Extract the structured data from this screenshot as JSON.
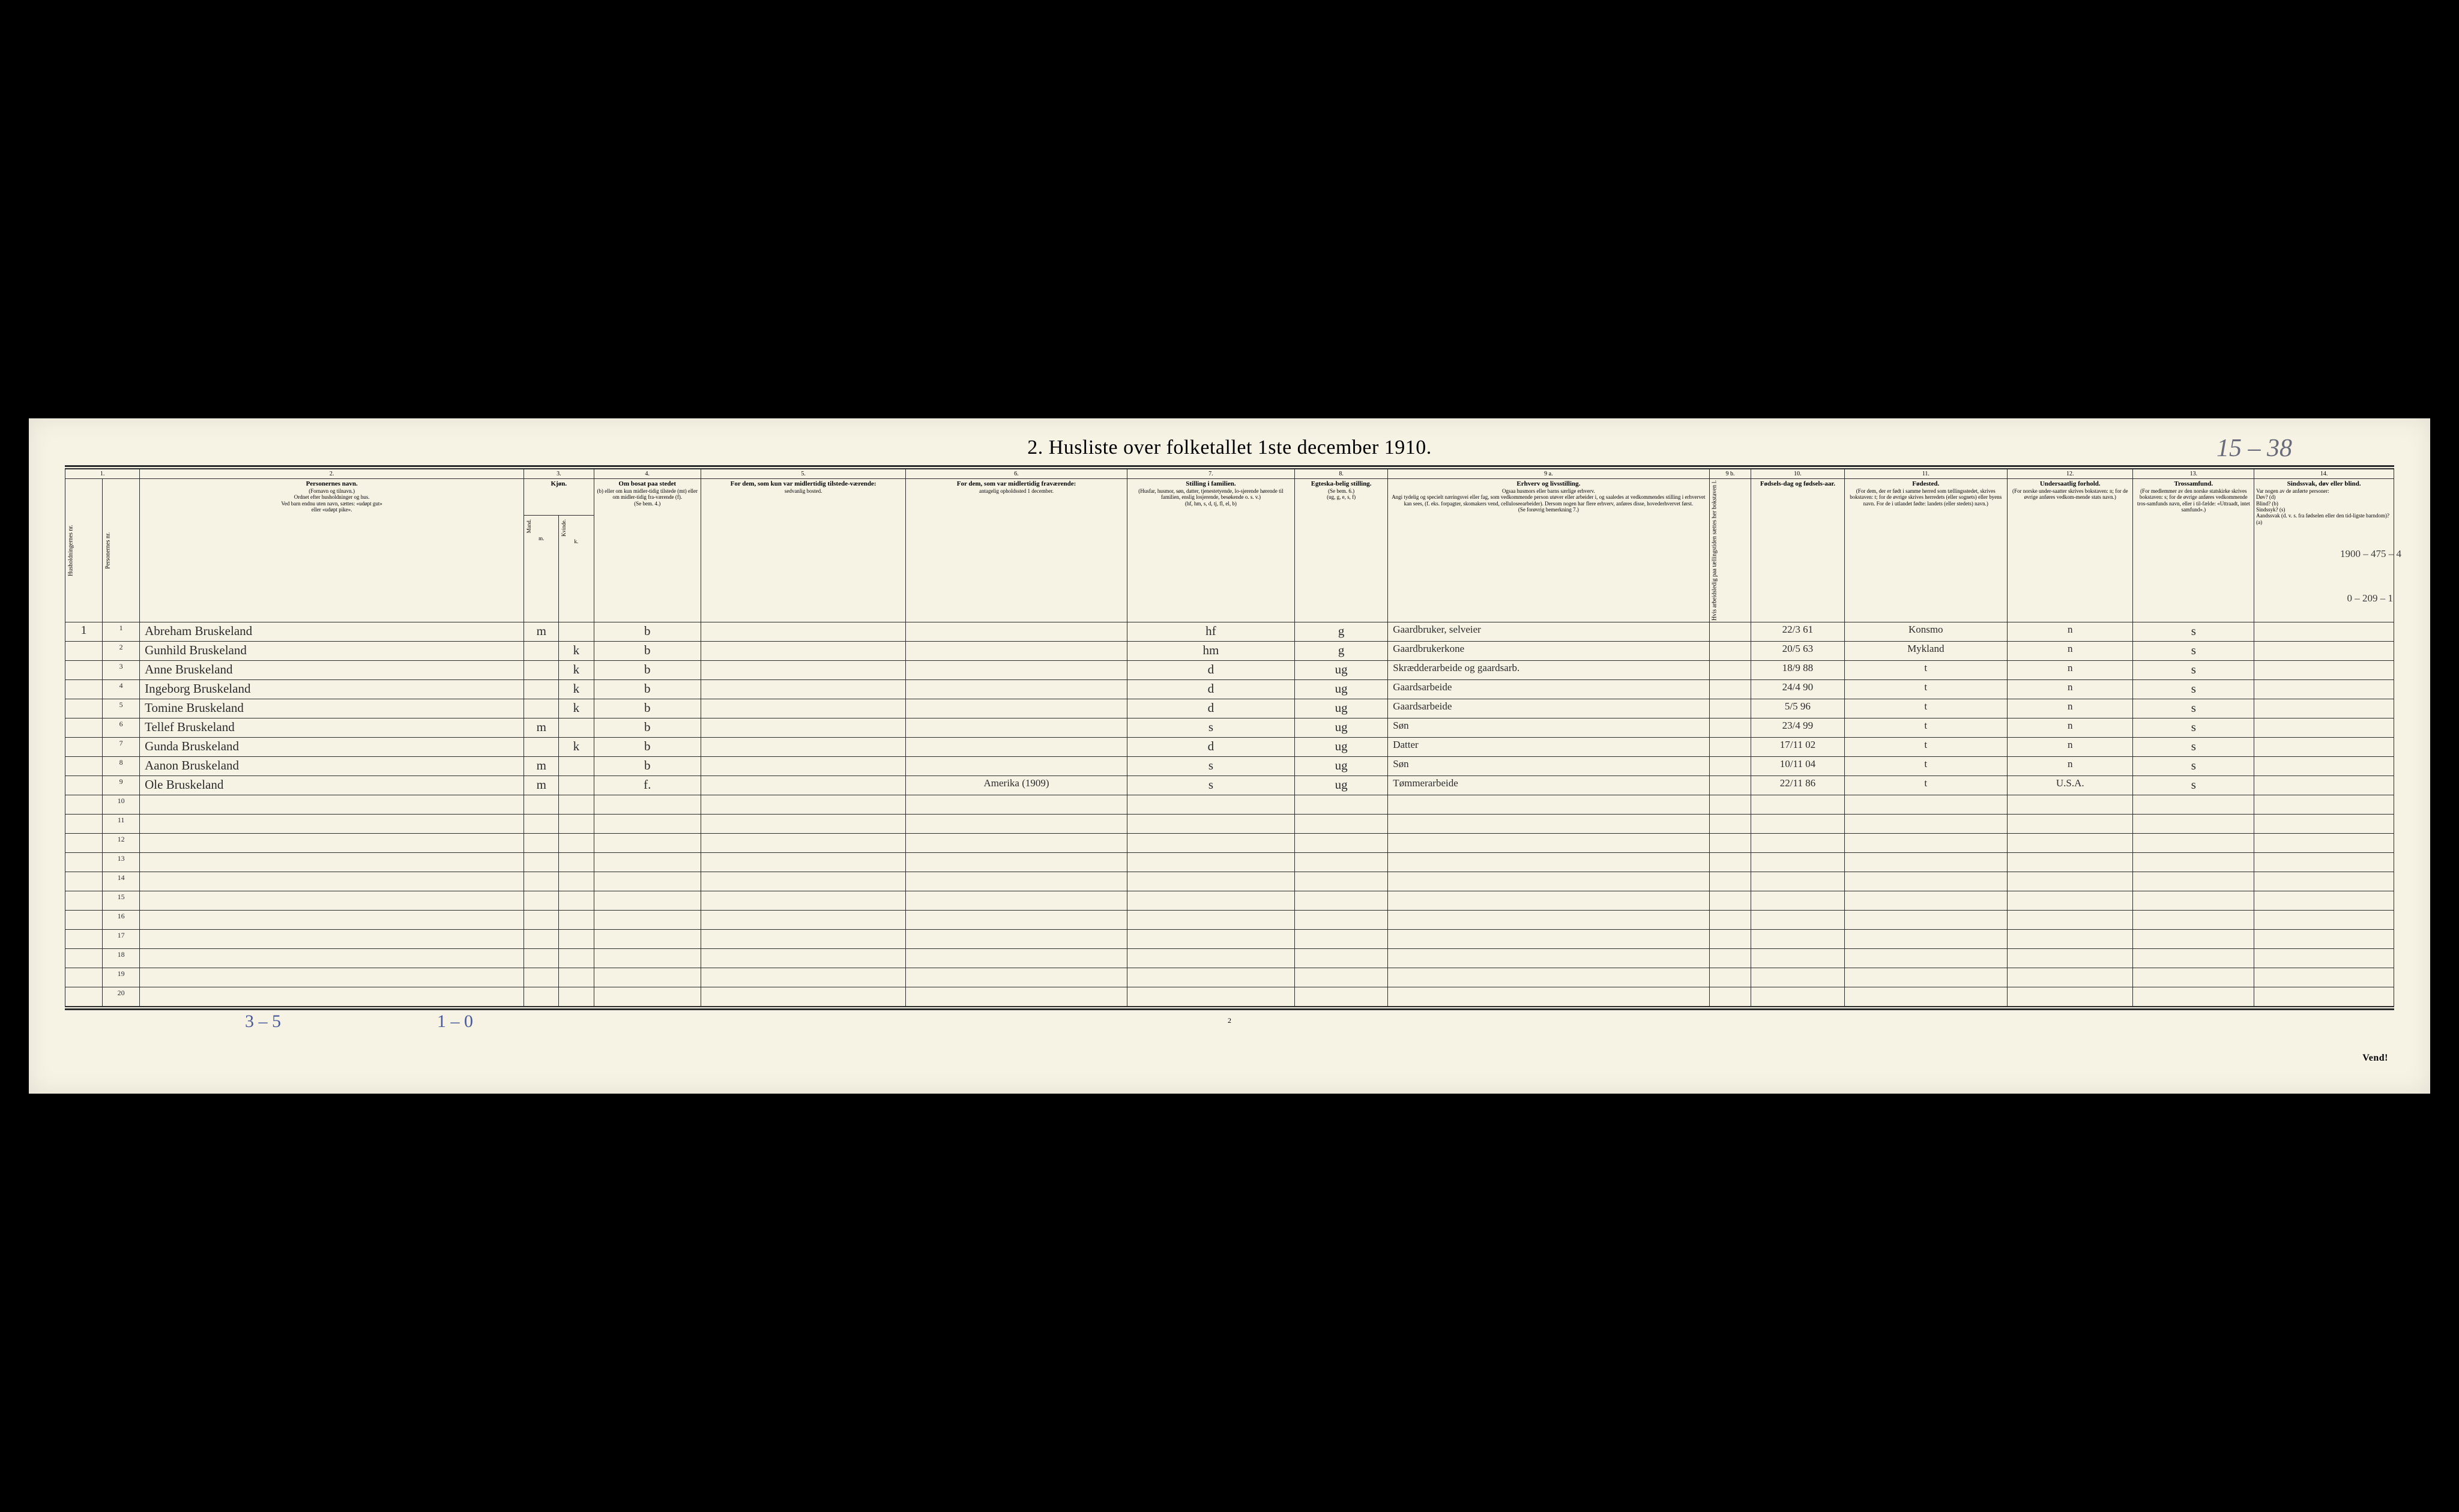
{
  "title": "2.  Husliste over folketallet 1ste december 1910.",
  "pencil_top": "15 – 38",
  "page_number_bottom": "2",
  "pencil_bottom_left": "3 – 5",
  "pencil_bottom_right": "1 – 0",
  "vend": "Vend!",
  "marginalia_top_right": "1900 – 475 – 4",
  "marginalia_row3": "0 – 209 – 1",
  "col_numbers": [
    "1.",
    "2.",
    "3.",
    "4.",
    "5.",
    "6.",
    "7.",
    "8.",
    "9 a.",
    "9 b.",
    "10.",
    "11.",
    "12.",
    "13.",
    "14."
  ],
  "headers": {
    "c1a": "Husholdningernes nr.",
    "c1b": "Personernes nr.",
    "c2_main": "Personernes navn.",
    "c2_sub": "(Fornavn og tilnavn.)\nOrdnet efter husholdninger og hus.\nVed barn endnu uten navn, sættes: «udøpt gut»\neller «udøpt pike».",
    "c3": "Kjøn.",
    "c3m": "Mand.",
    "c3k": "Kvinde.",
    "c3mk": "m.  k.",
    "c4_main": "Om bosat paa stedet",
    "c4_sub": "(b) eller om kun midler-tidig tilstede (mt) eller om midler-tidig fra-værende (f).\n(Se bem. 4.)",
    "c5_main": "For dem, som kun var midlertidig tilstede-værende:",
    "c5_sub": "sedvanlig bosted.",
    "c6_main": "For dem, som var midlertidig fraværende:",
    "c6_sub": "antagelig opholdssted 1 december.",
    "c7_main": "Stilling i familien.",
    "c7_sub": "(Husfar, husmor, søn, datter, tjenestetyende, lo-sjerende hørende til familien, enslig losjerende, besøkende o. s. v.)\n(hf, hm, s, d, tj, fl, el, b)",
    "c8_main": "Egteska-belig stilling.",
    "c8_sub": "(Se bem. 6.)\n(ug, g, e, s, f)",
    "c9a_main": "Erhverv og livsstilling.",
    "c9a_sub": "Ogsaa husmors eller barns særlige erhverv.\nAngi tydelig og specielt næringsvei eller fag, som vedkommende person utøver eller arbeider i, og saaledes at vedkommendes stilling i erhvervet kan sees, (f. eks. forpagter, skomakers vend, celluloseearbeider). Dersom nogen har flere erhverv, anføres disse, hovederhvervet først.\n(Se forøvrig bemerkning 7.)",
    "c9b": "Hvis arbeidsledig paa tællingstiden sættes her bokstaven l.",
    "c10_main": "Fødsels-dag og fødsels-aar.",
    "c11_main": "Fødested.",
    "c11_sub": "(For dem, der er født i samme herred som tællingsstedet, skrives bokstaven: t; for de øvrige skrives herredets (eller sognets) eller byens navn. For de i utlandet fødte: landets (eller stedets) navn.)",
    "c12_main": "Undersaatlig forhold.",
    "c12_sub": "(For norske under-saatter skrives bokstaven: n; for de øvrige anføres vedkom-mende stats navn.)",
    "c13_main": "Trossamfund.",
    "c13_sub": "(For medlemmer av den norske statskirke skrives bokstaven: s; for de øvrige anføres vedkommende tros-samfunds navn, eller i til-fælde: «Uttraadt, intet samfund».)",
    "c14_main": "Sindssvak, døv eller blind.",
    "c14_sub": "Var nogen av de anførte personer:\nDøv?        (d)\nBlind?       (b)\nSindssyk?  (s)\nAandssvak (d. v. s. fra fødselen eller den tid-ligste barndom)? (a)"
  },
  "rows": [
    {
      "hh": "1",
      "nr": "1",
      "name": "Abreham Bruskeland",
      "m": "m",
      "k": "",
      "res": "b",
      "c5": "",
      "c6": "",
      "fam": "hf",
      "civ": "g",
      "occ": "Gaardbruker, selveier",
      "c9b": "",
      "dob": "22/3 61",
      "birthplace": "Konsmo",
      "nat": "n",
      "rel": "s",
      "c14": ""
    },
    {
      "hh": "",
      "nr": "2",
      "name": "Gunhild Bruskeland",
      "m": "",
      "k": "k",
      "res": "b",
      "c5": "",
      "c6": "",
      "fam": "hm",
      "civ": "g",
      "occ": "Gaardbrukerkone",
      "c9b": "",
      "dob": "20/5 63",
      "birthplace": "Mykland",
      "nat": "n",
      "rel": "s",
      "c14": ""
    },
    {
      "hh": "",
      "nr": "3",
      "name": "Anne Bruskeland",
      "m": "",
      "k": "k",
      "res": "b",
      "c5": "",
      "c6": "",
      "fam": "d",
      "civ": "ug",
      "occ": "Skrædderarbeide og gaardsarb.",
      "c9b": "",
      "dob": "18/9 88",
      "birthplace": "t",
      "nat": "n",
      "rel": "s",
      "c14": ""
    },
    {
      "hh": "",
      "nr": "4",
      "name": "Ingeborg Bruskeland",
      "m": "",
      "k": "k",
      "res": "b",
      "c5": "",
      "c6": "",
      "fam": "d",
      "civ": "ug",
      "occ": "Gaardsarbeide",
      "c9b": "",
      "dob": "24/4 90",
      "birthplace": "t",
      "nat": "n",
      "rel": "s",
      "c14": ""
    },
    {
      "hh": "",
      "nr": "5",
      "name": "Tomine Bruskeland",
      "m": "",
      "k": "k",
      "res": "b",
      "c5": "",
      "c6": "",
      "fam": "d",
      "civ": "ug",
      "occ": "Gaardsarbeide",
      "c9b": "",
      "dob": "5/5 96",
      "birthplace": "t",
      "nat": "n",
      "rel": "s",
      "c14": ""
    },
    {
      "hh": "",
      "nr": "6",
      "name": "Tellef Bruskeland",
      "m": "m",
      "k": "",
      "res": "b",
      "c5": "",
      "c6": "",
      "fam": "s",
      "civ": "ug",
      "occ": "Søn",
      "c9b": "",
      "dob": "23/4 99",
      "birthplace": "t",
      "nat": "n",
      "rel": "s",
      "c14": ""
    },
    {
      "hh": "",
      "nr": "7",
      "name": "Gunda Bruskeland",
      "m": "",
      "k": "k",
      "res": "b",
      "c5": "",
      "c6": "",
      "fam": "d",
      "civ": "ug",
      "occ": "Datter",
      "c9b": "",
      "dob": "17/11 02",
      "birthplace": "t",
      "nat": "n",
      "rel": "s",
      "c14": ""
    },
    {
      "hh": "",
      "nr": "8",
      "name": "Aanon Bruskeland",
      "m": "m",
      "k": "",
      "res": "b",
      "c5": "",
      "c6": "",
      "fam": "s",
      "civ": "ug",
      "occ": "Søn",
      "c9b": "",
      "dob": "10/11 04",
      "birthplace": "t",
      "nat": "n",
      "rel": "s",
      "c14": ""
    },
    {
      "hh": "",
      "nr": "9",
      "name": "Ole Bruskeland",
      "m": "m",
      "k": "",
      "res": "f.",
      "c5": "",
      "c6": "Amerika (1909)",
      "fam": "s",
      "civ": "ug",
      "occ": "Tømmerarbeide",
      "c9b": "",
      "dob": "22/11 86",
      "birthplace": "t",
      "nat": "U.S.A.",
      "rel": "s",
      "c14": ""
    }
  ],
  "empty_row_numbers": [
    "10",
    "11",
    "12",
    "13",
    "14",
    "15",
    "16",
    "17",
    "18",
    "19",
    "20"
  ],
  "colwidths_pct": [
    1.6,
    1.6,
    16.5,
    1.5,
    1.5,
    4.6,
    8.8,
    9.5,
    7.2,
    4.0,
    13.8,
    1.8,
    4.0,
    7.0,
    5.4,
    5.2,
    6.0
  ]
}
